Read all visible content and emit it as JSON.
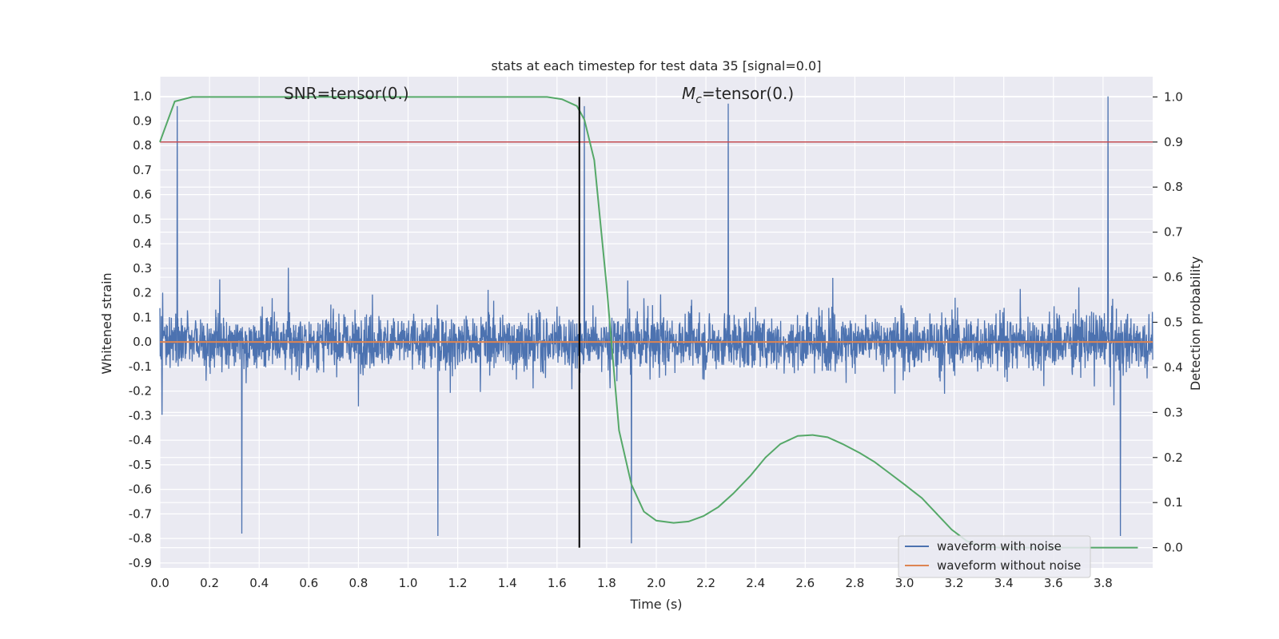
{
  "chart_data": {
    "type": "line",
    "title": "stats at each timestep for test data 35 [signal=0.0]",
    "xlabel": "Time (s)",
    "ylabel_left": "Whitened strain",
    "ylabel_right": "Detection probability",
    "xlim": [
      0.0,
      4.0
    ],
    "ylim_left": [
      -0.92,
      1.08
    ],
    "ylim_right": [
      -0.045,
      1.045
    ],
    "xticks": [
      "0.0",
      "0.2",
      "0.4",
      "0.6",
      "0.8",
      "1.0",
      "1.2",
      "1.4",
      "1.6",
      "1.8",
      "2.0",
      "2.2",
      "2.4",
      "2.6",
      "2.8",
      "3.0",
      "3.2",
      "3.4",
      "3.6",
      "3.8"
    ],
    "yticks_left": [
      "1.0",
      "0.9",
      "0.8",
      "0.7",
      "0.6",
      "0.5",
      "0.4",
      "0.3",
      "0.2",
      "0.1",
      "0.0",
      "-0.1",
      "-0.2",
      "-0.3",
      "-0.4",
      "-0.5",
      "-0.6",
      "-0.7",
      "-0.8",
      "-0.9"
    ],
    "yticks_right": [
      "1.0",
      "0.9",
      "0.8",
      "0.7",
      "0.6",
      "0.5",
      "0.4",
      "0.3",
      "0.2",
      "0.1",
      "0.0"
    ],
    "grid": true,
    "legend_position": "lower right",
    "annotations": {
      "snr": "SNR=tensor(0.)",
      "mc_symbol": "M",
      "mc_sub": "c",
      "mc_value": "=tensor(0.)"
    },
    "series": [
      {
        "name": "waveform with noise",
        "axis": "left",
        "color": "#4c72b0",
        "style": "dense noise",
        "envelope_typical": [
          -0.28,
          0.27
        ],
        "peaks": [
          {
            "x": 0.07,
            "y": 0.96
          },
          {
            "x": 0.33,
            "y": -0.78
          },
          {
            "x": 1.12,
            "y": -0.79
          },
          {
            "x": 1.71,
            "y": 0.96
          },
          {
            "x": 1.9,
            "y": -0.82
          },
          {
            "x": 2.29,
            "y": 0.97
          },
          {
            "x": 3.82,
            "y": 1.0
          },
          {
            "x": 3.87,
            "y": -0.79
          }
        ]
      },
      {
        "name": "waveform without noise",
        "axis": "left",
        "color": "#dd8452",
        "x": [
          0.0,
          4.0
        ],
        "y": [
          0.0,
          0.0
        ]
      },
      {
        "name": "detection probability",
        "axis": "right",
        "color": "#55a868",
        "x": [
          0.0,
          0.06,
          0.13,
          0.2,
          0.5,
          1.0,
          1.5,
          1.56,
          1.62,
          1.68,
          1.71,
          1.75,
          1.8,
          1.85,
          1.9,
          1.95,
          2.0,
          2.07,
          2.13,
          2.19,
          2.25,
          2.31,
          2.38,
          2.44,
          2.5,
          2.57,
          2.63,
          2.69,
          2.75,
          2.82,
          2.88,
          2.94,
          3.0,
          3.07,
          3.13,
          3.19,
          3.25,
          3.31,
          3.38,
          3.5,
          3.6,
          3.75,
          3.94
        ],
        "y": [
          0.9,
          0.99,
          1.0,
          1.0,
          1.0,
          1.0,
          1.0,
          1.0,
          0.995,
          0.98,
          0.95,
          0.86,
          0.58,
          0.26,
          0.14,
          0.08,
          0.06,
          0.055,
          0.058,
          0.07,
          0.09,
          0.12,
          0.16,
          0.2,
          0.23,
          0.248,
          0.25,
          0.245,
          0.23,
          0.21,
          0.19,
          0.165,
          0.14,
          0.11,
          0.075,
          0.04,
          0.015,
          0.002,
          0.0,
          0.0,
          0.0,
          0.0,
          0.0
        ]
      }
    ],
    "threshold": {
      "axis": "right",
      "value": 0.9,
      "color": "#c44e52"
    },
    "vline": {
      "x": 1.69,
      "color": "#000000"
    }
  }
}
